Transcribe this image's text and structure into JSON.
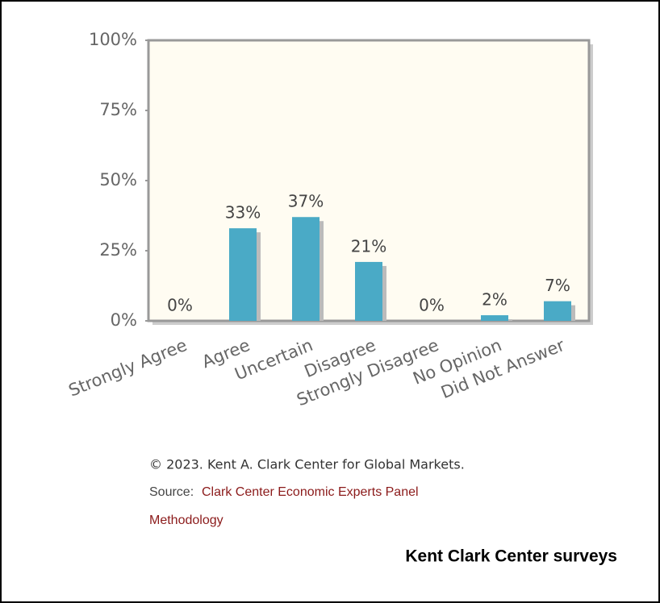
{
  "chart_data": {
    "type": "bar",
    "categories": [
      "Strongly Agree",
      "Agree",
      "Uncertain",
      "Disagree",
      "Strongly Disagree",
      "No Opinion",
      "Did Not Answer"
    ],
    "values": [
      0,
      33,
      37,
      21,
      0,
      2,
      7
    ],
    "value_labels": [
      "0%",
      "33%",
      "37%",
      "21%",
      "0%",
      "2%",
      "7%"
    ],
    "color": "#4aaac6",
    "ylim": [
      0,
      100
    ],
    "yticks": [
      {
        "value": 0,
        "label": "0%"
      },
      {
        "value": 25,
        "label": "25%"
      },
      {
        "value": 50,
        "label": "50%"
      },
      {
        "value": 75,
        "label": "75%"
      },
      {
        "value": 100,
        "label": "100%"
      }
    ]
  },
  "footer": {
    "copyright": "© 2023. Kent A. Clark Center for Global Markets.",
    "source_label": "Source:",
    "source_link": "Clark Center Economic Experts Panel",
    "methodology": "Methodology",
    "caption": "Kent Clark Center surveys"
  }
}
